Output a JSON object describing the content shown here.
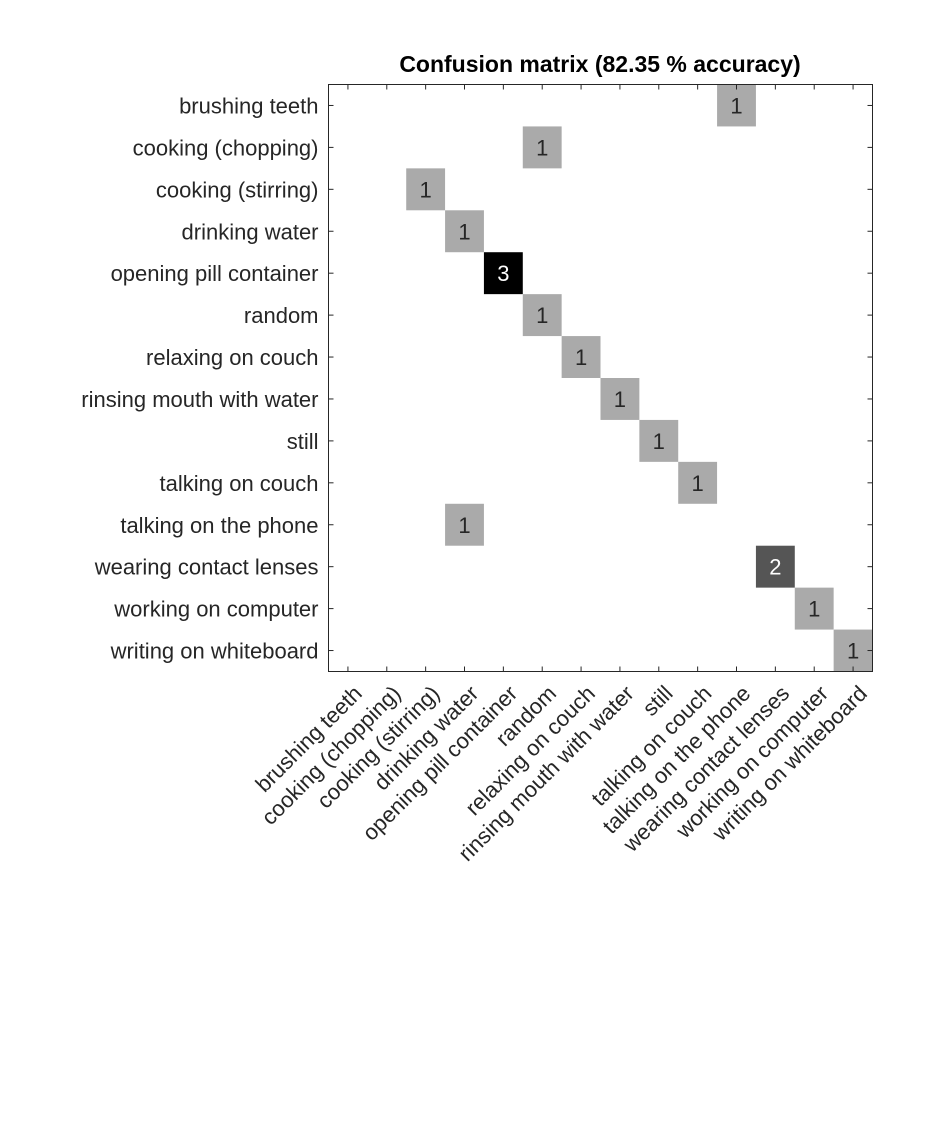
{
  "chart_data": {
    "type": "heatmap",
    "title": "Confusion matrix (82.35 % accuracy)",
    "xlabel": "",
    "ylabel": "",
    "labels": [
      "brushing teeth",
      "cooking (chopping)",
      "cooking (stirring)",
      "drinking water",
      "opening pill container",
      "random",
      "relaxing on couch",
      "rinsing mouth with water",
      "still",
      "talking on couch",
      "talking on the phone",
      "wearing contact lenses",
      "working on computer",
      "writing on whiteboard"
    ],
    "cells": [
      {
        "row": 0,
        "col": 10,
        "value": 1
      },
      {
        "row": 1,
        "col": 5,
        "value": 1
      },
      {
        "row": 2,
        "col": 2,
        "value": 1
      },
      {
        "row": 3,
        "col": 3,
        "value": 1
      },
      {
        "row": 4,
        "col": 4,
        "value": 3
      },
      {
        "row": 5,
        "col": 5,
        "value": 1
      },
      {
        "row": 6,
        "col": 6,
        "value": 1
      },
      {
        "row": 7,
        "col": 7,
        "value": 1
      },
      {
        "row": 8,
        "col": 8,
        "value": 1
      },
      {
        "row": 9,
        "col": 9,
        "value": 1
      },
      {
        "row": 10,
        "col": 3,
        "value": 1
      },
      {
        "row": 11,
        "col": 11,
        "value": 2
      },
      {
        "row": 12,
        "col": 12,
        "value": 1
      },
      {
        "row": 13,
        "col": 13,
        "value": 1
      }
    ],
    "value_range": [
      0,
      3
    ],
    "colormap": "white-to-black",
    "colors": {
      "max": "#000000",
      "text_dark": "#262626",
      "text_light": "#ffffff"
    },
    "grid": false
  }
}
